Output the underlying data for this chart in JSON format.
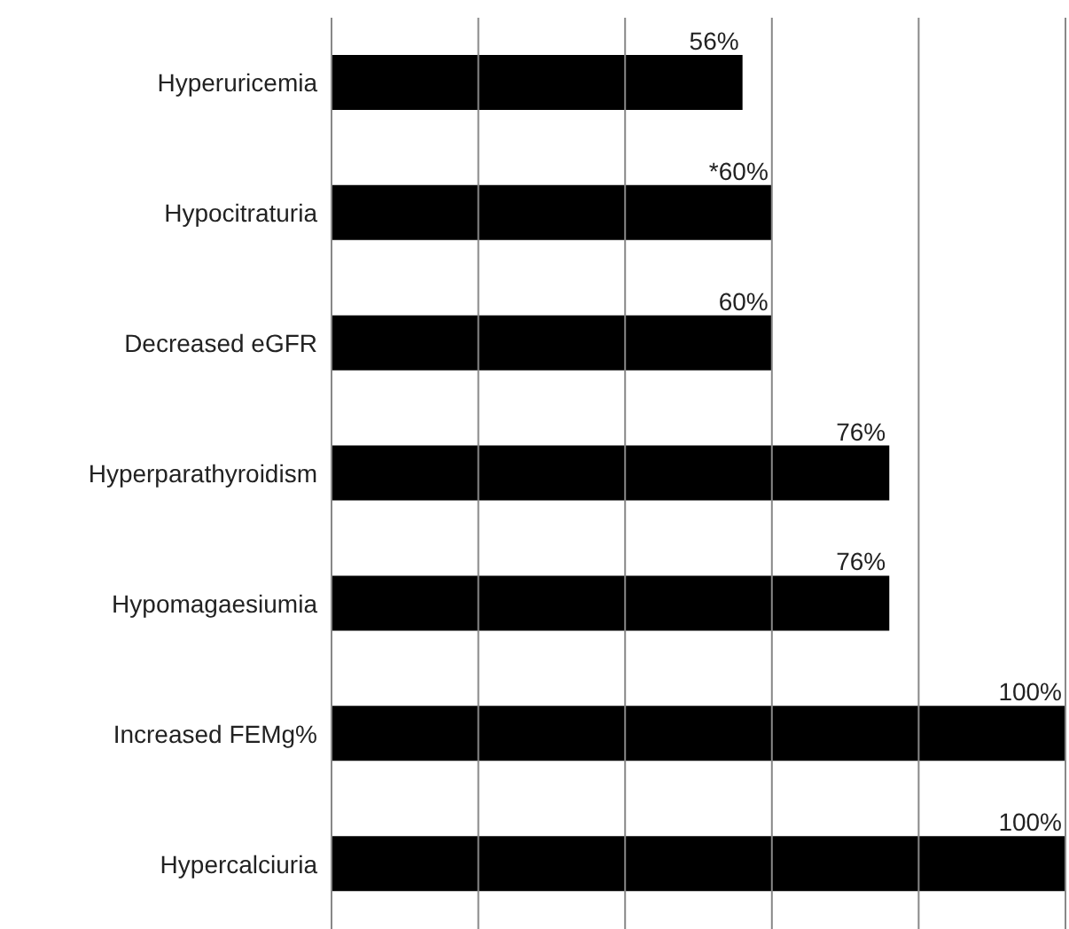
{
  "chart_data": {
    "type": "bar",
    "orientation": "horizontal",
    "categories": [
      "Hyperuricemia",
      "Hypocitraturia",
      "Decreased eGFR",
      "Hyperparathyroidism",
      "Hypomagaesiumia",
      "Increased FEMg%",
      "Hypercalciuria"
    ],
    "values": [
      56,
      60,
      60,
      76,
      76,
      100,
      100
    ],
    "value_labels": [
      "56%",
      "*60%",
      "60%",
      "76%",
      "76%",
      "100%",
      "100%"
    ],
    "color": "#000000",
    "xlim": [
      0,
      100
    ],
    "xticks": [
      {
        "value": 0,
        "label": null
      },
      {
        "value": 20,
        "label": null
      },
      {
        "value": 40,
        "label": null
      },
      {
        "value": 60,
        "label": null
      },
      {
        "value": 80,
        "label": null
      },
      {
        "value": 100,
        "label": null
      }
    ],
    "grid": "x",
    "legend": false,
    "tick_labels": "y"
  }
}
